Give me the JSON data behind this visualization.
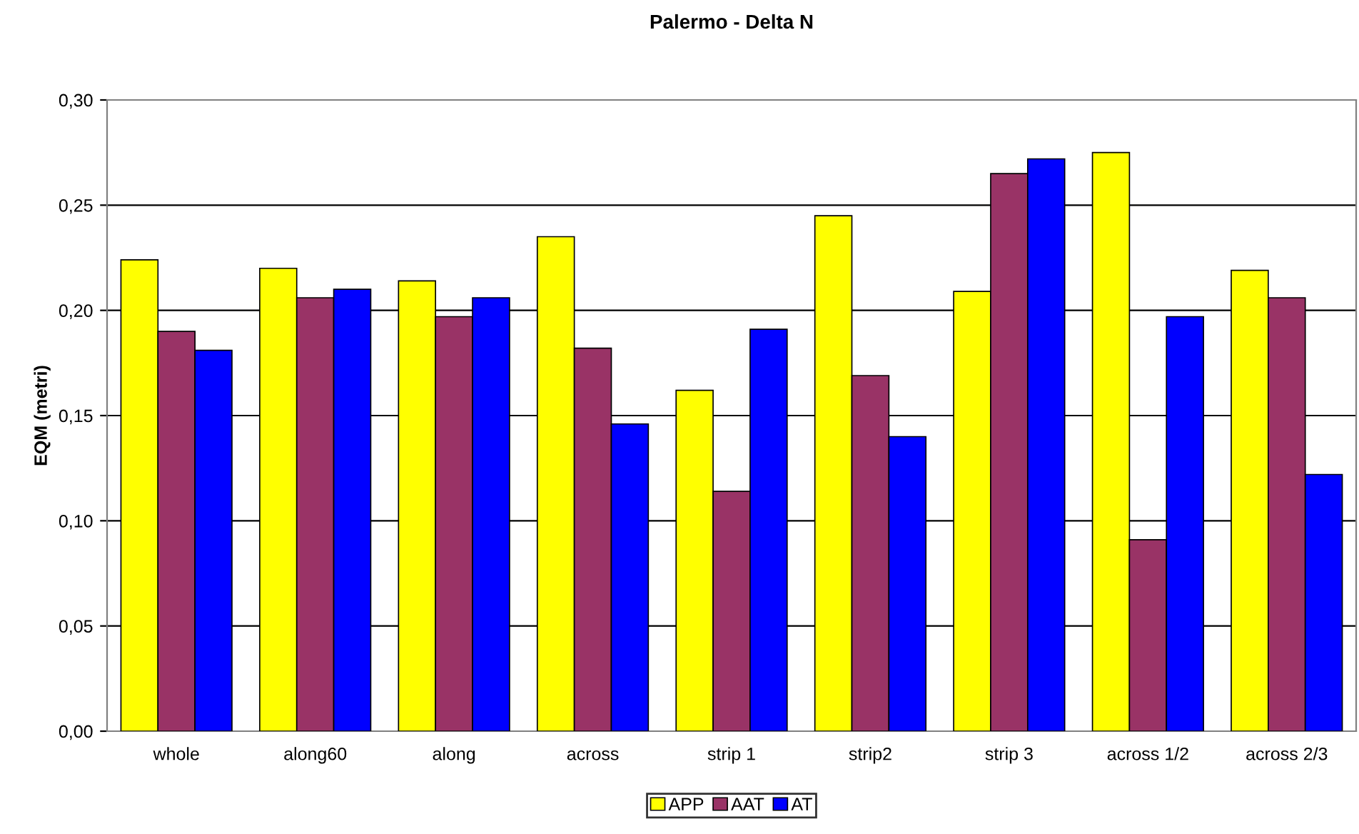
{
  "chart_data": {
    "type": "bar",
    "title": "Palermo - Delta N",
    "ylabel": "EQM (metri)",
    "categories": [
      "whole",
      "along60",
      "along",
      "across",
      "strip 1",
      "strip2",
      "strip 3",
      "across 1/2",
      "across 2/3"
    ],
    "series": [
      {
        "name": "APP",
        "color": "#ffff00",
        "values": [
          0.224,
          0.22,
          0.214,
          0.235,
          0.162,
          0.245,
          0.209,
          0.275,
          0.219
        ]
      },
      {
        "name": "AAT",
        "color": "#993366",
        "values": [
          0.19,
          0.206,
          0.197,
          0.182,
          0.114,
          0.169,
          0.265,
          0.091,
          0.206
        ]
      },
      {
        "name": "AT",
        "color": "#0000ff",
        "values": [
          0.181,
          0.21,
          0.206,
          0.146,
          0.191,
          0.14,
          0.272,
          0.197,
          0.122
        ]
      }
    ],
    "ylim": [
      0,
      0.3
    ],
    "yticks": [
      {
        "value": 0,
        "label": "0,00"
      },
      {
        "value": 0.05,
        "label": "0,05"
      },
      {
        "value": 0.1,
        "label": "0,10"
      },
      {
        "value": 0.15,
        "label": "0,15"
      },
      {
        "value": 0.2,
        "label": "0,20"
      },
      {
        "value": 0.25,
        "label": "0,25"
      },
      {
        "value": 0.3,
        "label": "0,30"
      }
    ],
    "grid": "y",
    "legend": "bottom"
  }
}
